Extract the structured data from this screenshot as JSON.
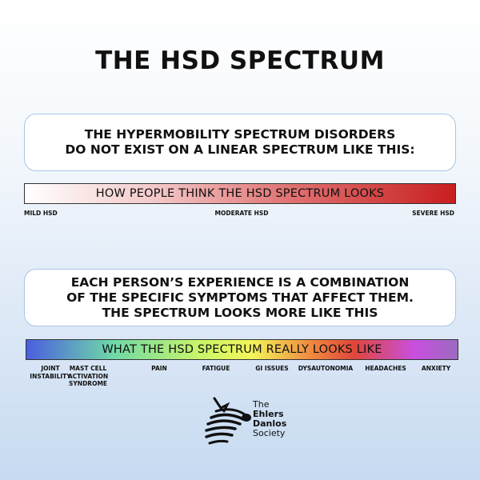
{
  "title": "THE HSD SPECTRUM",
  "box1": {
    "lines": [
      "THE HYPERMOBILITY SPECTRUM DISORDERS",
      "DO NOT EXIST ON A LINEAR SPECTRUM LIKE THIS:"
    ]
  },
  "bar1": {
    "label": "HOW PEOPLE THINK THE HSD SPECTRUM LOOKS",
    "colors": [
      "#ffffff",
      "#c81e1e"
    ],
    "ticks": [
      "MILD HSD",
      "MODERATE HSD",
      "SEVERE HSD"
    ]
  },
  "box2": {
    "lines": [
      "EACH PERSON’S EXPERIENCE IS A COMBINATION",
      "OF THE SPECIFIC SYMPTOMS THAT AFFECT THEM.",
      "THE SPECTRUM LOOKS MORE LIKE THIS"
    ]
  },
  "bar2": {
    "label": "WHAT THE HSD SPECTRUM REALLY LOOKS LIKE",
    "colors": [
      "#4a5ee0",
      "#6fd8a8",
      "#f2f75a",
      "#e0463a",
      "#c84fe0",
      "#9b6bc0"
    ],
    "ticks": [
      [
        "JOINT",
        "INSTABILITY"
      ],
      [
        "MAST CELL",
        "ACTIVATION",
        "SYNDROME"
      ],
      [
        "PAIN"
      ],
      [
        "FATIGUE"
      ],
      [
        "GI ISSUES"
      ],
      [
        "DYSAUTONOMIA"
      ],
      [
        "HEADACHES"
      ],
      [
        "ANXIETY"
      ]
    ]
  },
  "logo": {
    "icon": "zebra-icon",
    "lines": [
      "The",
      "Ehlers",
      "Danlos",
      "Society"
    ]
  }
}
